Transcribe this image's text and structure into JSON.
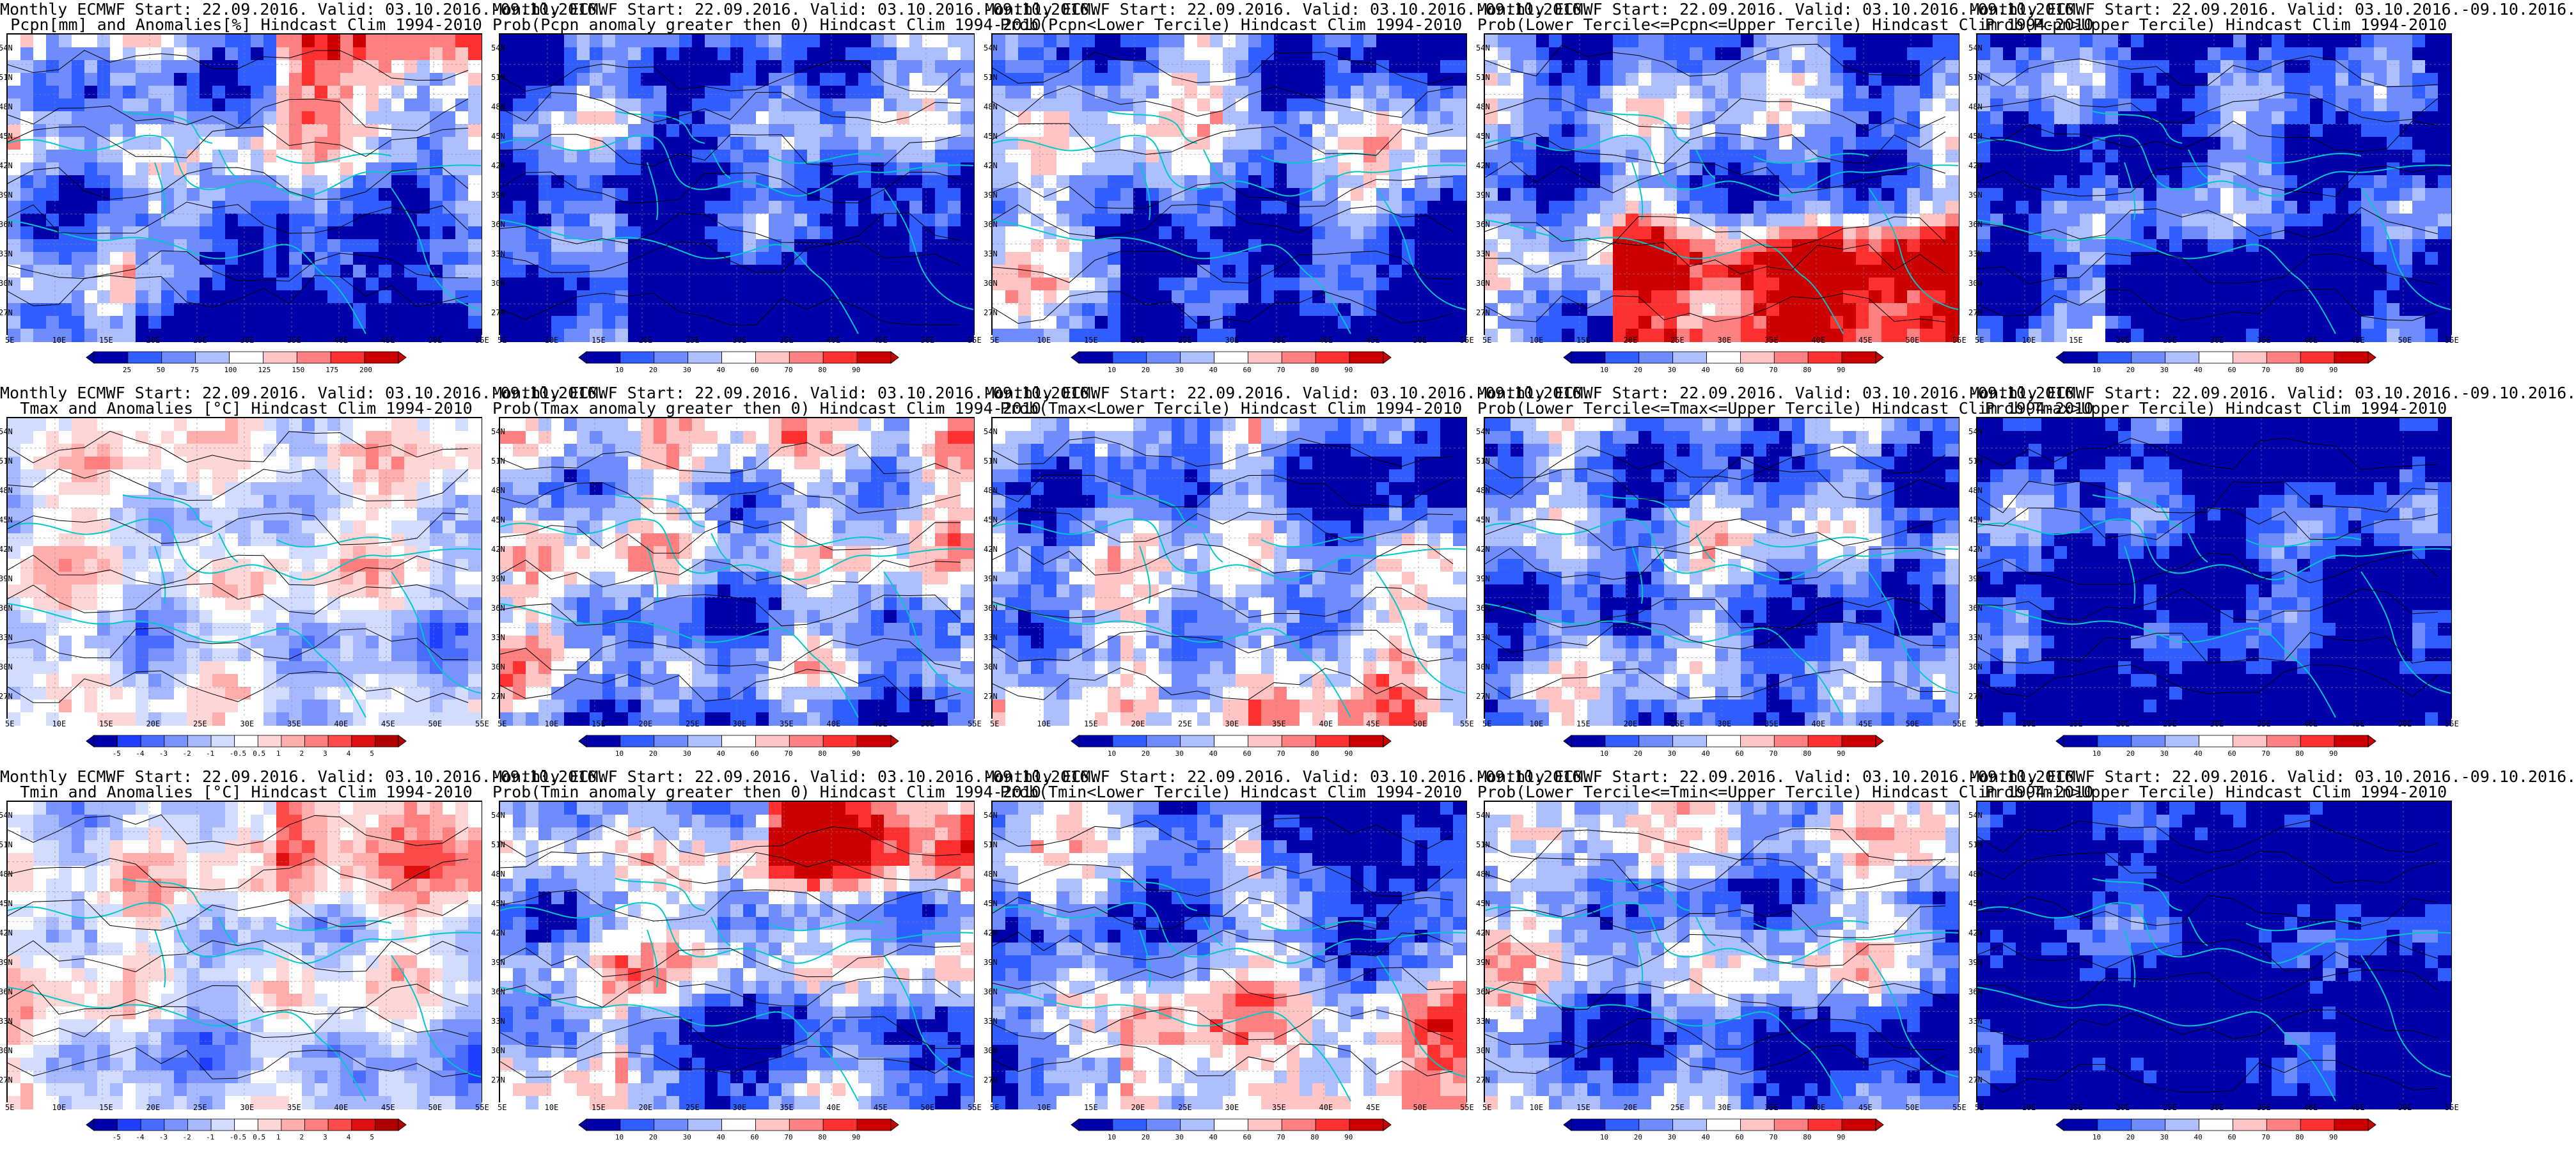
{
  "panels": [
    {
      "title1": "Monthly ECMWF Start: 22.09.2016. Valid: 03.10.2016.-09.10.2016.",
      "title2": "Pcpn[mm] and Anomalies[%] Hindcast Clim 1994-2010",
      "scheme": "pcpn",
      "cbar": [
        "25",
        "50",
        "75",
        "100",
        "125",
        "150",
        "175",
        "200"
      ],
      "cbar_colors": [
        "#0000aa",
        "#2f5dff",
        "#6f8cff",
        "#aebfff",
        "#ffffff",
        "#ffc4c4",
        "#ff8080",
        "#ff3030",
        "#cc0000"
      ]
    },
    {
      "title1": "Monthly ECMWF Start: 22.09.2016. Valid: 03.10.2016.-09.10.2016.",
      "title2": "Prob(Pcpn anomaly greater then 0) Hindcast Clim 1994-2010",
      "scheme": "prob_pcpn",
      "cbar": [
        "10",
        "20",
        "30",
        "40",
        "60",
        "70",
        "80",
        "90"
      ],
      "cbar_colors": [
        "#0000aa",
        "#2f5dff",
        "#6f8cff",
        "#aebfff",
        "#ffffff",
        "#ffc4c4",
        "#ff8080",
        "#ff3030",
        "#cc0000"
      ]
    },
    {
      "title1": "Monthly ECMWF Start: 22.09.2016. Valid: 03.10.2016.-09.10.2016.",
      "title2": "Prob(Pcpn<Lower Tercile) Hindcast Clim 1994-2010",
      "scheme": "prob_lower",
      "cbar": [
        "10",
        "20",
        "30",
        "40",
        "60",
        "70",
        "80",
        "90"
      ],
      "cbar_colors": [
        "#0000aa",
        "#2f5dff",
        "#6f8cff",
        "#aebfff",
        "#ffffff",
        "#ffc4c4",
        "#ff8080",
        "#ff3030",
        "#cc0000"
      ]
    },
    {
      "title1": "Monthly ECMWF Start: 22.09.2016. Valid: 03.10.2016.-09.10.2016.",
      "title2": "Prob(Lower Tercile<=Pcpn<=Upper Tercile) Hindcast Clim 1994-2010",
      "scheme": "prob_mid",
      "cbar": [
        "10",
        "20",
        "30",
        "40",
        "60",
        "70",
        "80",
        "90"
      ],
      "cbar_colors": [
        "#0000aa",
        "#2f5dff",
        "#6f8cff",
        "#aebfff",
        "#ffffff",
        "#ffc4c4",
        "#ff8080",
        "#ff3030",
        "#cc0000"
      ]
    },
    {
      "title1": "Monthly ECMWF Start: 22.09.2016. Valid: 03.10.2016.-09.10.2016.",
      "title2": "Prob(Pcpn>Upper Tercile) Hindcast Clim 1994-2010",
      "scheme": "prob_upper",
      "cbar": [
        "10",
        "20",
        "30",
        "40",
        "60",
        "70",
        "80",
        "90"
      ],
      "cbar_colors": [
        "#0000aa",
        "#2f5dff",
        "#6f8cff",
        "#aebfff",
        "#ffffff",
        "#ffc4c4",
        "#ff8080",
        "#ff3030",
        "#cc0000"
      ]
    },
    {
      "title1": "Monthly ECMWF Start: 22.09.2016. Valid: 03.10.2016.-09.10.2016.",
      "title2": "Tmax and Anomalies [°C] Hindcast Clim 1994-2010",
      "scheme": "temp",
      "cbar": [
        "-5",
        "-4",
        "-3",
        "-2",
        "-1",
        "-0.5",
        "0.5",
        "1",
        "2",
        "3",
        "4",
        "5"
      ],
      "cbar_colors": [
        "#0000aa",
        "#1f3fff",
        "#4a6bff",
        "#7893ff",
        "#a6b8ff",
        "#d2dcff",
        "#ffffff",
        "#ffd6d6",
        "#ffadad",
        "#ff7f7f",
        "#ff4a4a",
        "#e01010",
        "#b00000"
      ]
    },
    {
      "title1": "Monthly ECMWF Start: 22.09.2016. Valid: 03.10.2016.-09.10.2016.",
      "title2": "Prob(Tmax anomaly greater then 0) Hindcast Clim 1994-2010",
      "scheme": "prob_tmax",
      "cbar": [
        "10",
        "20",
        "30",
        "40",
        "60",
        "70",
        "80",
        "90"
      ],
      "cbar_colors": [
        "#0000aa",
        "#2f5dff",
        "#6f8cff",
        "#aebfff",
        "#ffffff",
        "#ffc4c4",
        "#ff8080",
        "#ff3030",
        "#cc0000"
      ]
    },
    {
      "title1": "Monthly ECMWF Start: 22.09.2016. Valid: 03.10.2016.-09.10.2016.",
      "title2": "Prob(Tmax<Lower Tercile) Hindcast Clim 1994-2010",
      "scheme": "prob_tlow",
      "cbar": [
        "10",
        "20",
        "30",
        "40",
        "60",
        "70",
        "80",
        "90"
      ],
      "cbar_colors": [
        "#0000aa",
        "#2f5dff",
        "#6f8cff",
        "#aebfff",
        "#ffffff",
        "#ffc4c4",
        "#ff8080",
        "#ff3030",
        "#cc0000"
      ]
    },
    {
      "title1": "Monthly ECMWF Start: 22.09.2016. Valid: 03.10.2016.-09.10.2016.",
      "title2": "Prob(Lower Tercile<=Tmax<=Upper Tercile) Hindcast Clim 1994-2010",
      "scheme": "prob_tmid",
      "cbar": [
        "10",
        "20",
        "30",
        "40",
        "60",
        "70",
        "80",
        "90"
      ],
      "cbar_colors": [
        "#0000aa",
        "#2f5dff",
        "#6f8cff",
        "#aebfff",
        "#ffffff",
        "#ffc4c4",
        "#ff8080",
        "#ff3030",
        "#cc0000"
      ]
    },
    {
      "title1": "Monthly ECMWF Start: 22.09.2016. Valid: 03.10.2016.-09.10.2016.",
      "title2": "Prob(Tmax>Upper Tercile) Hindcast Clim 1994-2010",
      "scheme": "prob_tup",
      "cbar": [
        "10",
        "20",
        "30",
        "40",
        "60",
        "70",
        "80",
        "90"
      ],
      "cbar_colors": [
        "#0000aa",
        "#2f5dff",
        "#6f8cff",
        "#aebfff",
        "#ffffff",
        "#ffc4c4",
        "#ff8080",
        "#ff3030",
        "#cc0000"
      ]
    },
    {
      "title1": "Monthly ECMWF Start: 22.09.2016. Valid: 03.10.2016.-09.10.2016.",
      "title2": "Tmin and Anomalies [°C] Hindcast Clim 1994-2010",
      "scheme": "tmin",
      "cbar": [
        "-5",
        "-4",
        "-3",
        "-2",
        "-1",
        "-0.5",
        "0.5",
        "1",
        "2",
        "3",
        "4",
        "5"
      ],
      "cbar_colors": [
        "#0000aa",
        "#1f3fff",
        "#4a6bff",
        "#7893ff",
        "#a6b8ff",
        "#d2dcff",
        "#ffffff",
        "#ffd6d6",
        "#ffadad",
        "#ff7f7f",
        "#ff4a4a",
        "#e01010",
        "#b00000"
      ]
    },
    {
      "title1": "Monthly ECMWF Start: 22.09.2016. Valid: 03.10.2016.-09.10.2016.",
      "title2": "Prob(Tmin anomaly greater then 0) Hindcast Clim 1994-2010",
      "scheme": "prob_tminpos",
      "cbar": [
        "10",
        "20",
        "30",
        "40",
        "60",
        "70",
        "80",
        "90"
      ],
      "cbar_colors": [
        "#0000aa",
        "#2f5dff",
        "#6f8cff",
        "#aebfff",
        "#ffffff",
        "#ffc4c4",
        "#ff8080",
        "#ff3030",
        "#cc0000"
      ]
    },
    {
      "title1": "Monthly ECMWF Start: 22.09.2016. Valid: 03.10.2016.-09.10.2016.",
      "title2": "Prob(Tmin<Lower Tercile) Hindcast Clim 1994-2010",
      "scheme": "prob_tminlow",
      "cbar": [
        "10",
        "20",
        "30",
        "40",
        "60",
        "70",
        "80",
        "90"
      ],
      "cbar_colors": [
        "#0000aa",
        "#2f5dff",
        "#6f8cff",
        "#aebfff",
        "#ffffff",
        "#ffc4c4",
        "#ff8080",
        "#ff3030",
        "#cc0000"
      ]
    },
    {
      "title1": "Monthly ECMWF Start: 22.09.2016. Valid: 03.10.2016.-09.10.2016.",
      "title2": "Prob(Lower Tercile<=Tmin<=Upper Tercile) Hindcast Clim 1994-2010",
      "scheme": "prob_tminmid",
      "cbar": [
        "10",
        "20",
        "30",
        "40",
        "60",
        "70",
        "80",
        "90"
      ],
      "cbar_colors": [
        "#0000aa",
        "#2f5dff",
        "#6f8cff",
        "#aebfff",
        "#ffffff",
        "#ffc4c4",
        "#ff8080",
        "#ff3030",
        "#cc0000"
      ]
    },
    {
      "title1": "Monthly ECMWF Start: 22.09.2016. Valid: 03.10.2016.-09.10.2016.",
      "title2": "Prob(Tmin>Upper Tercile) Hindcast Clim 1994-2010",
      "scheme": "prob_tminup",
      "cbar": [
        "10",
        "20",
        "30",
        "40",
        "60",
        "70",
        "80",
        "90"
      ],
      "cbar_colors": [
        "#0000aa",
        "#2f5dff",
        "#6f8cff",
        "#aebfff",
        "#ffffff",
        "#ffc4c4",
        "#ff8080",
        "#ff3030",
        "#cc0000"
      ]
    }
  ],
  "lat_labels": [
    "54N",
    "51N",
    "48N",
    "45N",
    "42N",
    "39N",
    "36N",
    "33N",
    "30N",
    "27N"
  ],
  "lon_labels": [
    "5E",
    "10E",
    "15E",
    "20E",
    "25E",
    "30E",
    "35E",
    "40E",
    "45E",
    "50E",
    "55E"
  ],
  "colors": {
    "coast": "#00c8c8",
    "contour": "#000000",
    "frame": "#000000"
  }
}
